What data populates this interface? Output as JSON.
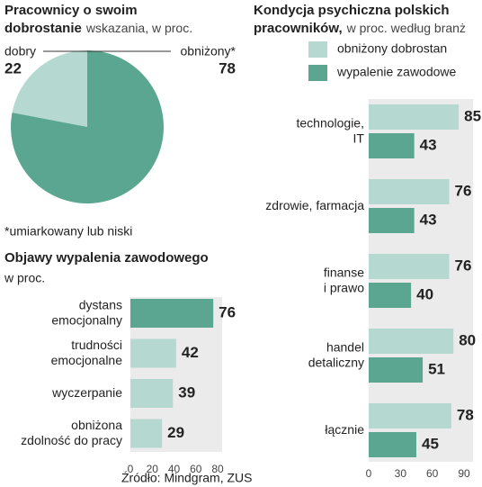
{
  "chart_data": [
    {
      "type": "pie",
      "title": [
        "Pracownicy o swoim",
        "dobrostanie"
      ],
      "subtitle": "wskazania, w proc.",
      "categories": [
        "dobry",
        "obniżony*"
      ],
      "values": [
        22,
        78
      ],
      "colors": [
        "#b5d9d0",
        "#5aa690"
      ],
      "note": "*umiarkowany lub niski"
    },
    {
      "type": "hbar",
      "title": [
        "Objawy wypalenia zawodowego"
      ],
      "subtitle": "w proc.",
      "categories": [
        [
          "dystans",
          "emocjonalny"
        ],
        [
          "trudności",
          "emocjonalne"
        ],
        [
          "wyczerpanie"
        ],
        [
          "obniżona",
          "zdolność do pracy"
        ]
      ],
      "values": [
        76,
        42,
        39,
        29
      ],
      "colors": [
        "#5aa690",
        "#b5d9d0",
        "#b5d9d0",
        "#b5d9d0"
      ],
      "xlim": [
        0,
        80
      ],
      "xticks": [
        0,
        20,
        40,
        60,
        80
      ],
      "source": "Źródło: Mindgram, ZUS"
    },
    {
      "type": "grouped-hbar",
      "title": [
        "Kondycja psychiczna polskich",
        "pracowników,"
      ],
      "subtitle": "w proc. według branż",
      "categories": [
        [
          "technologie,",
          "IT"
        ],
        [
          "zdrowie, farmacja"
        ],
        [
          "finanse",
          "i prawo"
        ],
        [
          "handel",
          "detaliczny"
        ],
        [
          "łącznie"
        ]
      ],
      "series": [
        {
          "name": "obniżony dobrostan",
          "color": "#b5d9d0",
          "values": [
            85,
            76,
            76,
            80,
            78
          ]
        },
        {
          "name": "wypalenie zawodowe",
          "color": "#5aa690",
          "values": [
            43,
            43,
            40,
            51,
            45
          ]
        }
      ],
      "xlim": [
        0,
        90
      ],
      "xticks": [
        0,
        30,
        60,
        90
      ]
    }
  ]
}
